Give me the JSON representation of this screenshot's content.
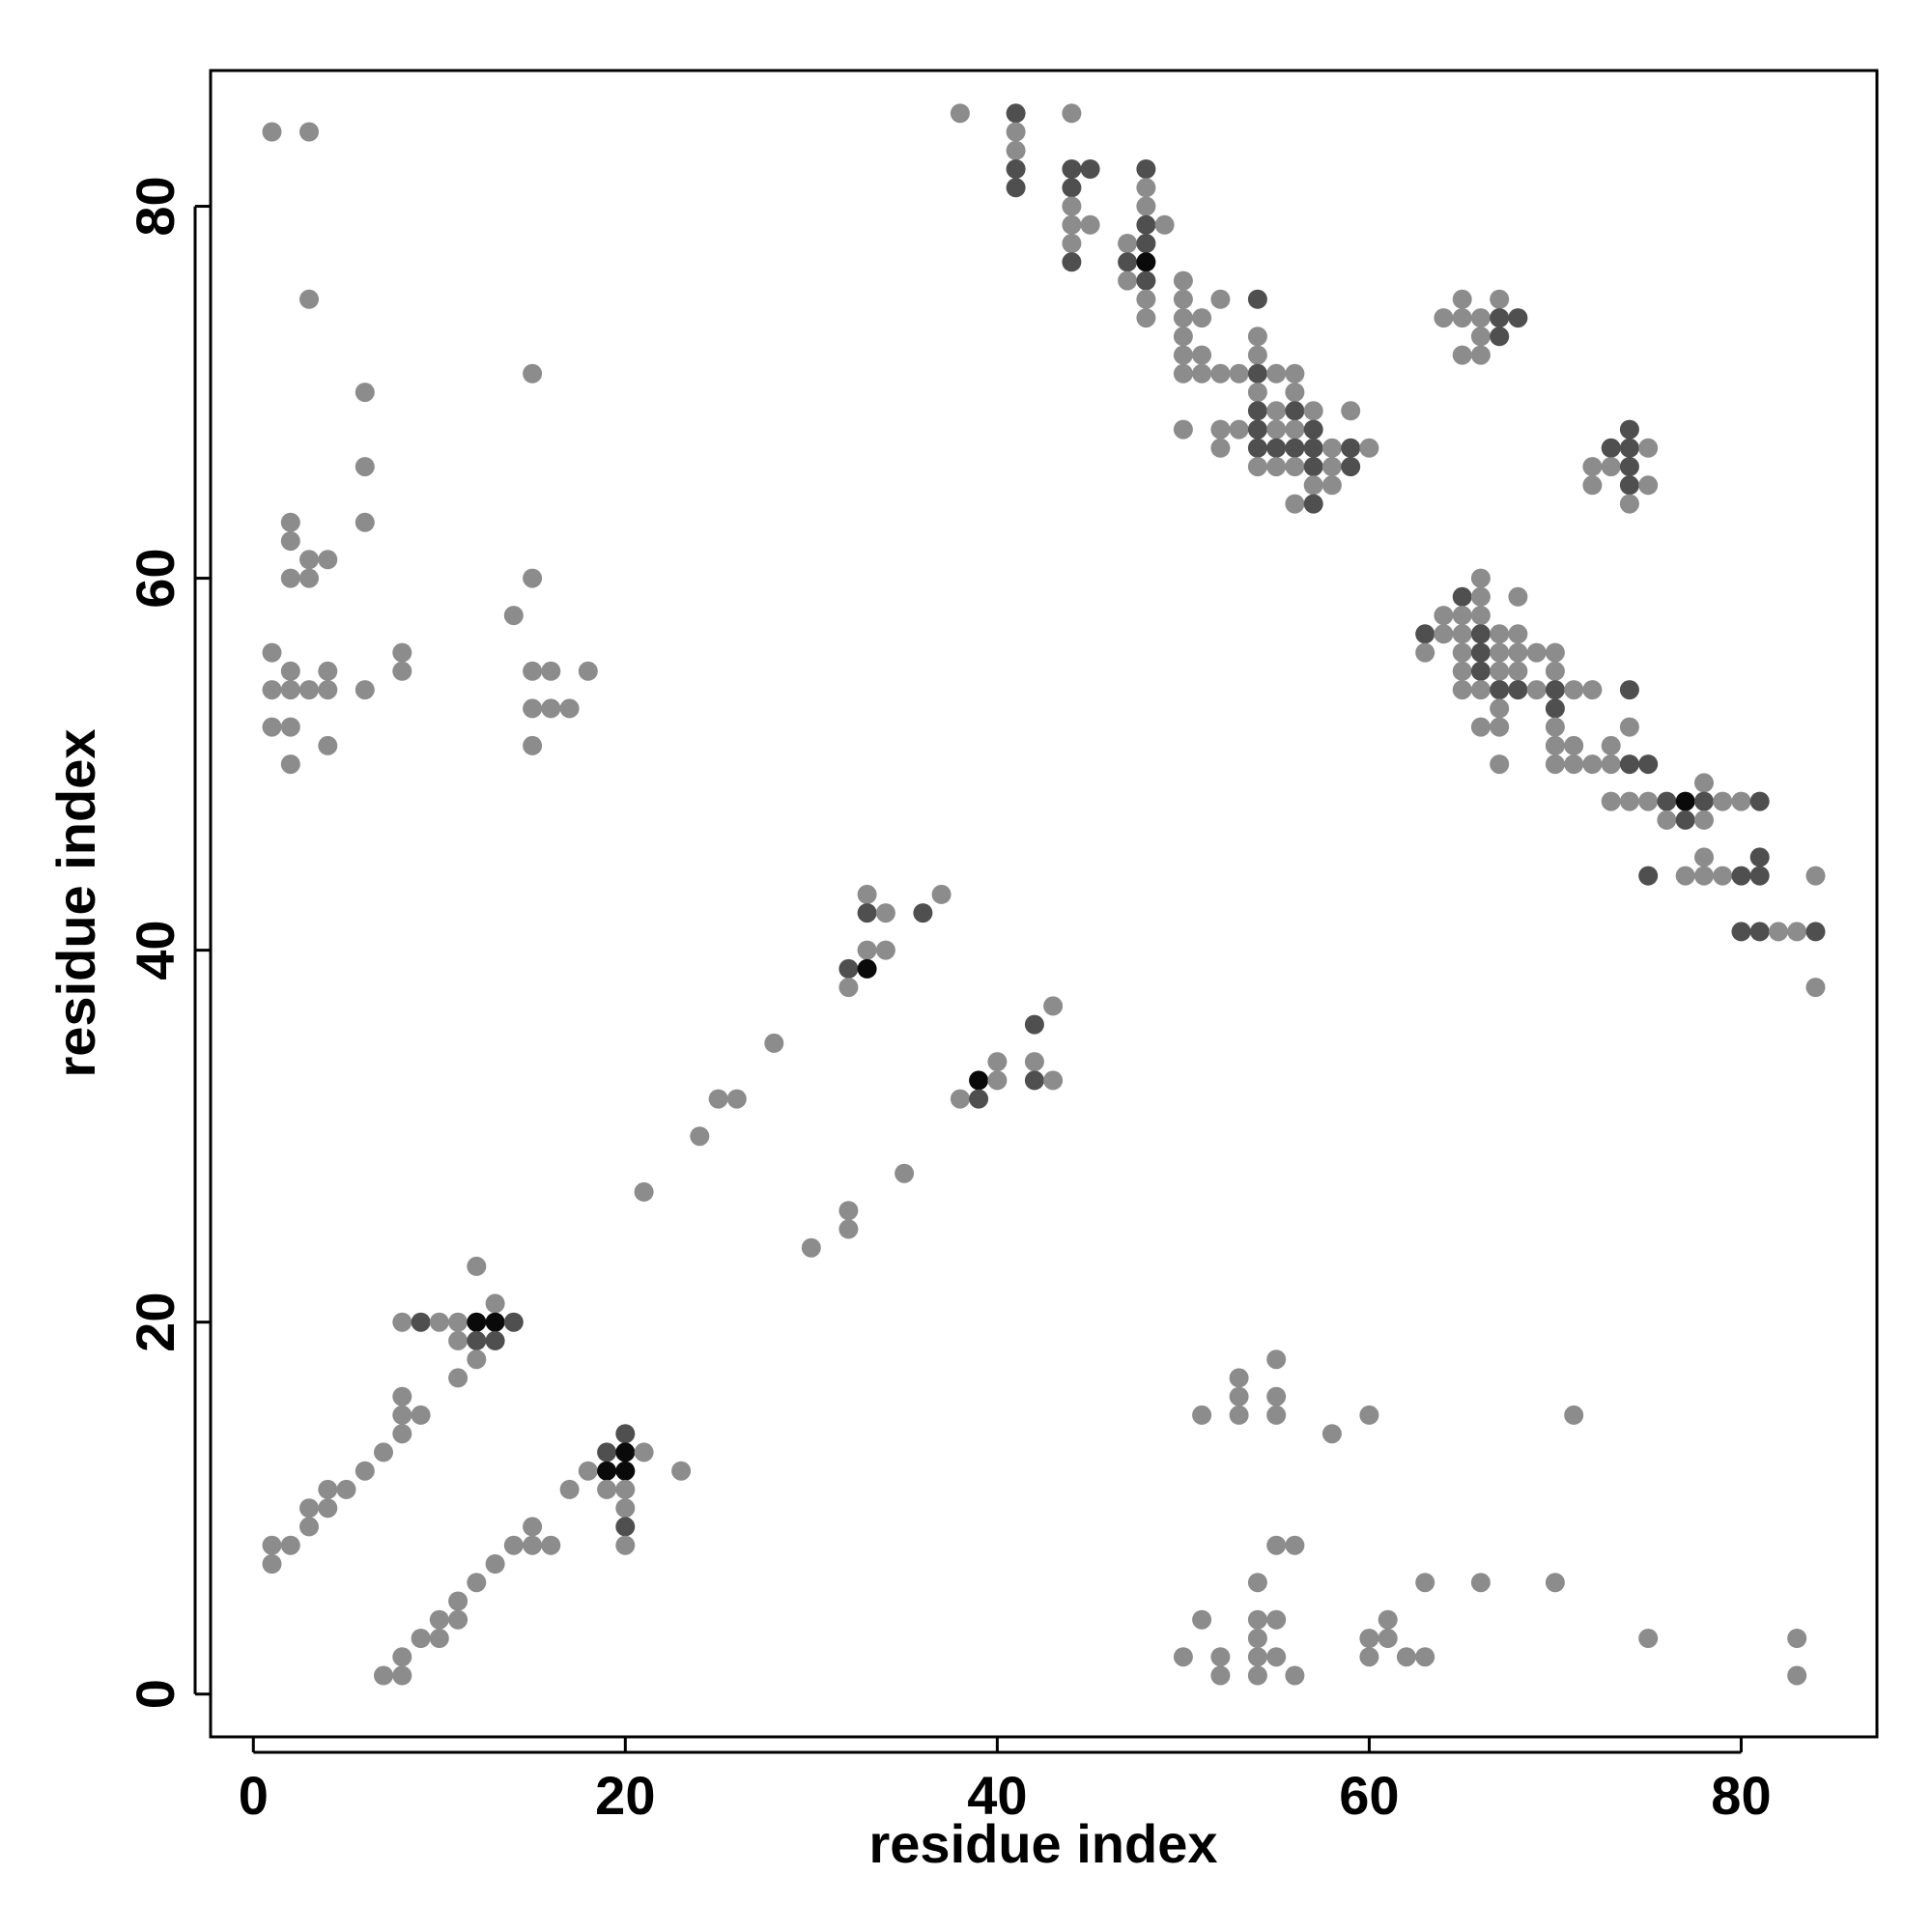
{
  "chart_data": {
    "type": "scatter",
    "title": "",
    "xlabel": "residue index",
    "ylabel": "residue index",
    "xlim": [
      -2.3,
      87.3
    ],
    "ylim": [
      -2.3,
      87.3
    ],
    "xticks": [
      0,
      20,
      40,
      60,
      80
    ],
    "yticks": [
      0,
      20,
      40,
      60,
      80
    ],
    "grid": false,
    "legend": "none",
    "colors": {
      "low": "#8c8c8c",
      "mid": "#6e6e6e",
      "high": "#4f4f4f",
      "max": "#0a0a0a"
    },
    "points": [
      [
        1,
        84,
        "low"
      ],
      [
        3,
        84,
        "low"
      ],
      [
        3,
        75,
        "low"
      ],
      [
        6,
        70,
        "low"
      ],
      [
        6,
        66,
        "low"
      ],
      [
        2,
        63,
        "low"
      ],
      [
        6,
        63,
        "low"
      ],
      [
        2,
        62,
        "low"
      ],
      [
        3,
        61,
        "low"
      ],
      [
        4,
        61,
        "low"
      ],
      [
        2,
        60,
        "low"
      ],
      [
        3,
        60,
        "low"
      ],
      [
        1,
        56,
        "low"
      ],
      [
        8,
        56,
        "low"
      ],
      [
        2,
        55,
        "low"
      ],
      [
        4,
        55,
        "low"
      ],
      [
        8,
        55,
        "low"
      ],
      [
        1,
        54,
        "low"
      ],
      [
        2,
        54,
        "low"
      ],
      [
        3,
        54,
        "low"
      ],
      [
        4,
        54,
        "low"
      ],
      [
        6,
        54,
        "low"
      ],
      [
        1,
        52,
        "low"
      ],
      [
        2,
        52,
        "low"
      ],
      [
        4,
        51,
        "low"
      ],
      [
        2,
        50,
        "low"
      ],
      [
        15,
        71,
        "low"
      ],
      [
        15,
        60,
        "low"
      ],
      [
        14,
        58,
        "low"
      ],
      [
        15,
        55,
        "low"
      ],
      [
        16,
        55,
        "low"
      ],
      [
        18,
        55,
        "low"
      ],
      [
        15,
        53,
        "low"
      ],
      [
        16,
        53,
        "low"
      ],
      [
        17,
        53,
        "low"
      ],
      [
        15,
        51,
        "low"
      ],
      [
        38,
        85,
        "low"
      ],
      [
        41,
        85,
        "high"
      ],
      [
        44,
        85,
        "low"
      ],
      [
        41,
        84,
        "low"
      ],
      [
        41,
        83,
        "low"
      ],
      [
        41,
        82,
        "high"
      ],
      [
        44,
        82,
        "high"
      ],
      [
        45,
        82,
        "high"
      ],
      [
        48,
        82,
        "high"
      ],
      [
        41,
        81,
        "high"
      ],
      [
        44,
        81,
        "high"
      ],
      [
        48,
        81,
        "low"
      ],
      [
        44,
        80,
        "low"
      ],
      [
        48,
        80,
        "low"
      ],
      [
        44,
        79,
        "low"
      ],
      [
        45,
        79,
        "low"
      ],
      [
        48,
        79,
        "high"
      ],
      [
        49,
        79,
        "low"
      ],
      [
        44,
        78,
        "low"
      ],
      [
        47,
        78,
        "low"
      ],
      [
        48,
        78,
        "high"
      ],
      [
        44,
        77,
        "high"
      ],
      [
        47,
        77,
        "high"
      ],
      [
        48,
        77,
        "max"
      ],
      [
        47,
        76,
        "low"
      ],
      [
        48,
        76,
        "high"
      ],
      [
        50,
        76,
        "low"
      ],
      [
        48,
        75,
        "low"
      ],
      [
        50,
        75,
        "low"
      ],
      [
        52,
        75,
        "low"
      ],
      [
        54,
        75,
        "high"
      ],
      [
        48,
        74,
        "low"
      ],
      [
        50,
        74,
        "low"
      ],
      [
        51,
        74,
        "low"
      ],
      [
        50,
        73,
        "low"
      ],
      [
        54,
        73,
        "low"
      ],
      [
        50,
        72,
        "low"
      ],
      [
        51,
        72,
        "low"
      ],
      [
        54,
        72,
        "low"
      ],
      [
        50,
        71,
        "low"
      ],
      [
        51,
        71,
        "low"
      ],
      [
        52,
        71,
        "low"
      ],
      [
        53,
        71,
        "low"
      ],
      [
        54,
        71,
        "high"
      ],
      [
        55,
        71,
        "low"
      ],
      [
        56,
        71,
        "low"
      ],
      [
        54,
        70,
        "low"
      ],
      [
        56,
        70,
        "low"
      ],
      [
        54,
        69,
        "high"
      ],
      [
        55,
        69,
        "low"
      ],
      [
        56,
        69,
        "high"
      ],
      [
        57,
        69,
        "low"
      ],
      [
        59,
        69,
        "low"
      ],
      [
        50,
        68,
        "low"
      ],
      [
        52,
        68,
        "low"
      ],
      [
        53,
        68,
        "low"
      ],
      [
        54,
        68,
        "high"
      ],
      [
        55,
        68,
        "low"
      ],
      [
        56,
        68,
        "low"
      ],
      [
        57,
        68,
        "high"
      ],
      [
        52,
        67,
        "low"
      ],
      [
        54,
        67,
        "high"
      ],
      [
        55,
        67,
        "high"
      ],
      [
        56,
        67,
        "high"
      ],
      [
        57,
        67,
        "high"
      ],
      [
        58,
        67,
        "low"
      ],
      [
        59,
        67,
        "high"
      ],
      [
        60,
        67,
        "low"
      ],
      [
        54,
        66,
        "low"
      ],
      [
        55,
        66,
        "low"
      ],
      [
        56,
        66,
        "low"
      ],
      [
        57,
        66,
        "high"
      ],
      [
        58,
        66,
        "low"
      ],
      [
        59,
        66,
        "high"
      ],
      [
        57,
        65,
        "low"
      ],
      [
        58,
        65,
        "low"
      ],
      [
        56,
        64,
        "low"
      ],
      [
        57,
        64,
        "high"
      ],
      [
        65,
        75,
        "low"
      ],
      [
        67,
        75,
        "low"
      ],
      [
        64,
        74,
        "low"
      ],
      [
        65,
        74,
        "low"
      ],
      [
        66,
        74,
        "low"
      ],
      [
        67,
        74,
        "high"
      ],
      [
        68,
        74,
        "high"
      ],
      [
        66,
        73,
        "low"
      ],
      [
        67,
        73,
        "high"
      ],
      [
        65,
        72,
        "low"
      ],
      [
        66,
        72,
        "low"
      ],
      [
        74,
        68,
        "high"
      ],
      [
        73,
        67,
        "high"
      ],
      [
        74,
        67,
        "high"
      ],
      [
        75,
        67,
        "low"
      ],
      [
        72,
        66,
        "low"
      ],
      [
        73,
        66,
        "low"
      ],
      [
        74,
        66,
        "high"
      ],
      [
        72,
        65,
        "low"
      ],
      [
        74,
        65,
        "high"
      ],
      [
        75,
        65,
        "low"
      ],
      [
        74,
        64,
        "low"
      ],
      [
        66,
        60,
        "low"
      ],
      [
        65,
        59,
        "high"
      ],
      [
        66,
        59,
        "low"
      ],
      [
        68,
        59,
        "low"
      ],
      [
        64,
        58,
        "low"
      ],
      [
        65,
        58,
        "low"
      ],
      [
        66,
        58,
        "low"
      ],
      [
        63,
        57,
        "high"
      ],
      [
        64,
        57,
        "low"
      ],
      [
        65,
        57,
        "low"
      ],
      [
        66,
        57,
        "high"
      ],
      [
        67,
        57,
        "low"
      ],
      [
        68,
        57,
        "low"
      ],
      [
        63,
        56,
        "low"
      ],
      [
        65,
        56,
        "low"
      ],
      [
        66,
        56,
        "high"
      ],
      [
        67,
        56,
        "low"
      ],
      [
        68,
        56,
        "low"
      ],
      [
        69,
        56,
        "low"
      ],
      [
        70,
        56,
        "low"
      ],
      [
        65,
        55,
        "low"
      ],
      [
        66,
        55,
        "high"
      ],
      [
        67,
        55,
        "low"
      ],
      [
        68,
        55,
        "low"
      ],
      [
        70,
        55,
        "low"
      ],
      [
        65,
        54,
        "low"
      ],
      [
        66,
        54,
        "low"
      ],
      [
        67,
        54,
        "high"
      ],
      [
        68,
        54,
        "high"
      ],
      [
        69,
        54,
        "low"
      ],
      [
        70,
        54,
        "high"
      ],
      [
        71,
        54,
        "low"
      ],
      [
        72,
        54,
        "low"
      ],
      [
        74,
        54,
        "high"
      ],
      [
        67,
        53,
        "low"
      ],
      [
        70,
        53,
        "high"
      ],
      [
        66,
        52,
        "low"
      ],
      [
        67,
        52,
        "low"
      ],
      [
        70,
        52,
        "low"
      ],
      [
        74,
        52,
        "low"
      ],
      [
        70,
        51,
        "low"
      ],
      [
        71,
        51,
        "low"
      ],
      [
        73,
        51,
        "low"
      ],
      [
        67,
        50,
        "low"
      ],
      [
        70,
        50,
        "low"
      ],
      [
        71,
        50,
        "low"
      ],
      [
        72,
        50,
        "low"
      ],
      [
        73,
        50,
        "low"
      ],
      [
        74,
        50,
        "high"
      ],
      [
        75,
        50,
        "high"
      ],
      [
        78,
        49,
        "low"
      ],
      [
        73,
        48,
        "low"
      ],
      [
        74,
        48,
        "low"
      ],
      [
        75,
        48,
        "low"
      ],
      [
        76,
        48,
        "high"
      ],
      [
        77,
        48,
        "max"
      ],
      [
        78,
        48,
        "high"
      ],
      [
        79,
        48,
        "low"
      ],
      [
        80,
        48,
        "low"
      ],
      [
        81,
        48,
        "high"
      ],
      [
        76,
        47,
        "low"
      ],
      [
        77,
        47,
        "high"
      ],
      [
        78,
        47,
        "low"
      ],
      [
        78,
        45,
        "low"
      ],
      [
        81,
        45,
        "high"
      ],
      [
        75,
        44,
        "high"
      ],
      [
        77,
        44,
        "low"
      ],
      [
        78,
        44,
        "low"
      ],
      [
        79,
        44,
        "low"
      ],
      [
        80,
        44,
        "high"
      ],
      [
        81,
        44,
        "high"
      ],
      [
        84,
        44,
        "low"
      ],
      [
        80,
        41,
        "high"
      ],
      [
        81,
        41,
        "high"
      ],
      [
        82,
        41,
        "low"
      ],
      [
        83,
        41,
        "low"
      ],
      [
        84,
        41,
        "high"
      ],
      [
        84,
        38,
        "low"
      ],
      [
        33,
        43,
        "low"
      ],
      [
        37,
        43,
        "low"
      ],
      [
        33,
        42,
        "high"
      ],
      [
        34,
        42,
        "low"
      ],
      [
        36,
        42,
        "high"
      ],
      [
        33,
        40,
        "low"
      ],
      [
        34,
        40,
        "low"
      ],
      [
        32,
        39,
        "high"
      ],
      [
        33,
        39,
        "max"
      ],
      [
        32,
        38,
        "low"
      ],
      [
        43,
        37,
        "low"
      ],
      [
        42,
        36,
        "high"
      ],
      [
        28,
        35,
        "low"
      ],
      [
        40,
        34,
        "low"
      ],
      [
        42,
        34,
        "low"
      ],
      [
        39,
        33,
        "max"
      ],
      [
        40,
        33,
        "low"
      ],
      [
        42,
        33,
        "high"
      ],
      [
        43,
        33,
        "low"
      ],
      [
        25,
        32,
        "low"
      ],
      [
        26,
        32,
        "low"
      ],
      [
        38,
        32,
        "low"
      ],
      [
        39,
        32,
        "high"
      ],
      [
        24,
        30,
        "low"
      ],
      [
        35,
        28,
        "low"
      ],
      [
        21,
        27,
        "low"
      ],
      [
        32,
        26,
        "low"
      ],
      [
        32,
        25,
        "low"
      ],
      [
        30,
        24,
        "low"
      ],
      [
        12,
        23,
        "low"
      ],
      [
        13,
        21,
        "low"
      ],
      [
        8,
        20,
        "low"
      ],
      [
        9,
        20,
        "high"
      ],
      [
        10,
        20,
        "low"
      ],
      [
        11,
        20,
        "low"
      ],
      [
        12,
        20,
        "max"
      ],
      [
        13,
        20,
        "max"
      ],
      [
        14,
        20,
        "high"
      ],
      [
        11,
        19,
        "low"
      ],
      [
        12,
        19,
        "high"
      ],
      [
        13,
        19,
        "high"
      ],
      [
        12,
        18,
        "low"
      ],
      [
        11,
        17,
        "low"
      ],
      [
        8,
        16,
        "low"
      ],
      [
        8,
        15,
        "low"
      ],
      [
        9,
        15,
        "low"
      ],
      [
        8,
        14,
        "low"
      ],
      [
        7,
        13,
        "low"
      ],
      [
        6,
        12,
        "low"
      ],
      [
        4,
        11,
        "low"
      ],
      [
        5,
        11,
        "low"
      ],
      [
        3,
        10,
        "low"
      ],
      [
        4,
        10,
        "low"
      ],
      [
        3,
        9,
        "low"
      ],
      [
        1,
        8,
        "low"
      ],
      [
        2,
        8,
        "low"
      ],
      [
        1,
        7,
        "low"
      ],
      [
        20,
        14,
        "high"
      ],
      [
        19,
        13,
        "high"
      ],
      [
        20,
        13,
        "max"
      ],
      [
        21,
        13,
        "low"
      ],
      [
        18,
        12,
        "low"
      ],
      [
        19,
        12,
        "max"
      ],
      [
        20,
        12,
        "max"
      ],
      [
        23,
        12,
        "low"
      ],
      [
        17,
        11,
        "low"
      ],
      [
        19,
        11,
        "low"
      ],
      [
        20,
        11,
        "low"
      ],
      [
        20,
        10,
        "low"
      ],
      [
        15,
        9,
        "low"
      ],
      [
        20,
        9,
        "high"
      ],
      [
        14,
        8,
        "low"
      ],
      [
        15,
        8,
        "low"
      ],
      [
        16,
        8,
        "low"
      ],
      [
        20,
        8,
        "low"
      ],
      [
        13,
        7,
        "low"
      ],
      [
        12,
        6,
        "low"
      ],
      [
        11,
        5,
        "low"
      ],
      [
        10,
        4,
        "low"
      ],
      [
        11,
        4,
        "low"
      ],
      [
        9,
        3,
        "low"
      ],
      [
        10,
        3,
        "low"
      ],
      [
        8,
        2,
        "low"
      ],
      [
        7,
        1,
        "low"
      ],
      [
        8,
        1,
        "low"
      ],
      [
        55,
        18,
        "low"
      ],
      [
        53,
        17,
        "low"
      ],
      [
        53,
        16,
        "low"
      ],
      [
        55,
        16,
        "low"
      ],
      [
        51,
        15,
        "low"
      ],
      [
        53,
        15,
        "low"
      ],
      [
        55,
        15,
        "low"
      ],
      [
        60,
        15,
        "low"
      ],
      [
        71,
        15,
        "low"
      ],
      [
        58,
        14,
        "low"
      ],
      [
        55,
        8,
        "low"
      ],
      [
        56,
        8,
        "low"
      ],
      [
        54,
        6,
        "low"
      ],
      [
        63,
        6,
        "low"
      ],
      [
        66,
        6,
        "low"
      ],
      [
        70,
        6,
        "low"
      ],
      [
        51,
        4,
        "low"
      ],
      [
        54,
        4,
        "low"
      ],
      [
        55,
        4,
        "low"
      ],
      [
        61,
        4,
        "low"
      ],
      [
        54,
        3,
        "low"
      ],
      [
        60,
        3,
        "low"
      ],
      [
        61,
        3,
        "low"
      ],
      [
        75,
        3,
        "low"
      ],
      [
        83,
        3,
        "low"
      ],
      [
        50,
        2,
        "low"
      ],
      [
        52,
        2,
        "low"
      ],
      [
        54,
        2,
        "low"
      ],
      [
        55,
        2,
        "low"
      ],
      [
        60,
        2,
        "low"
      ],
      [
        62,
        2,
        "low"
      ],
      [
        63,
        2,
        "low"
      ],
      [
        52,
        1,
        "low"
      ],
      [
        54,
        1,
        "low"
      ],
      [
        56,
        1,
        "low"
      ],
      [
        83,
        1,
        "low"
      ]
    ]
  }
}
